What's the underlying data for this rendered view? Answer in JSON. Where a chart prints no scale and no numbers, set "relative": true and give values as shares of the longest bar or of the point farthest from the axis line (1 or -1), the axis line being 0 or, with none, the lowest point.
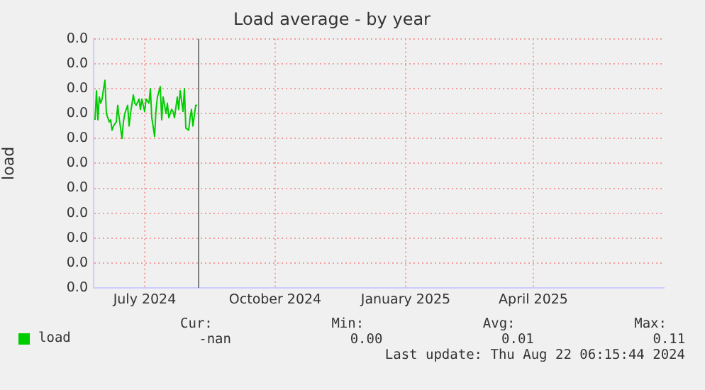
{
  "chart_data": {
    "type": "line",
    "title": "Load average - by year",
    "ylabel": "load",
    "relative": true,
    "x": [
      "2024-05-27",
      "2024-05-28",
      "2024-05-29",
      "2024-05-30",
      "2024-05-31",
      "2024-06-01",
      "2024-06-02",
      "2024-06-03",
      "2024-06-04",
      "2024-06-06",
      "2024-06-07",
      "2024-06-08",
      "2024-06-09",
      "2024-06-11",
      "2024-06-12",
      "2024-06-13",
      "2024-06-15",
      "2024-06-16",
      "2024-06-17",
      "2024-06-19",
      "2024-06-20",
      "2024-06-21",
      "2024-06-23",
      "2024-06-24",
      "2024-06-25",
      "2024-06-27",
      "2024-06-28",
      "2024-06-29",
      "2024-07-01",
      "2024-07-02",
      "2024-07-04",
      "2024-07-05",
      "2024-07-06",
      "2024-07-08",
      "2024-07-09",
      "2024-07-10",
      "2024-07-12",
      "2024-07-13",
      "2024-07-14",
      "2024-07-16",
      "2024-07-17",
      "2024-07-18",
      "2024-07-20",
      "2024-07-21",
      "2024-07-22",
      "2024-07-24",
      "2024-07-25",
      "2024-07-26",
      "2024-07-28",
      "2024-07-29",
      "2024-07-30",
      "2024-08-01",
      "2024-08-02",
      "2024-08-03",
      "2024-08-04",
      "2024-08-06",
      "2024-08-07"
    ],
    "series": [
      {
        "name": "load",
        "color": "#00cc00",
        "values": [
          0.81,
          0.95,
          0.81,
          0.92,
          0.89,
          0.91,
          0.96,
          1,
          0.84,
          0.8,
          0.81,
          0.76,
          0.78,
          0.8,
          0.88,
          0.82,
          0.72,
          0.8,
          0.84,
          0.88,
          0.78,
          0.84,
          0.93,
          0.89,
          0.88,
          0.91,
          0.86,
          0.91,
          0.85,
          0.91,
          0.89,
          0.96,
          0.82,
          0.73,
          0.86,
          0.92,
          0.97,
          0.81,
          0.92,
          0.84,
          0.89,
          0.82,
          0.86,
          0.85,
          0.82,
          0.92,
          0.86,
          0.95,
          0.85,
          0.96,
          0.77,
          0.76,
          0.82,
          0.86,
          0.78,
          0.88,
          0.88
        ]
      }
    ],
    "xlim": [
      "2024-05-26",
      "2025-07-02"
    ],
    "xticks": [
      {
        "value": "2024-07-01",
        "label": "July 2024"
      },
      {
        "value": "2024-10-01",
        "label": "October 2024"
      },
      {
        "value": "2025-01-01",
        "label": "January 2025"
      },
      {
        "value": "2025-04-01",
        "label": "April 2025"
      }
    ],
    "ref_lines": [
      {
        "axis": "x",
        "value": "2024-08-08",
        "label": null,
        "color": "#808080"
      }
    ],
    "grid": true,
    "legend": "bottom left",
    "marker": "none",
    "line_style": "solid",
    "annotations": [
      "0.0",
      "0.0",
      "0.0",
      "0.0",
      "0.0",
      "0.0",
      "0.0",
      "0.0",
      "0.0",
      "0.0",
      "0.0",
      "Cur:",
      "Min:",
      "Avg:",
      "Max:",
      "-nan",
      "0.00",
      "0.01",
      "0.11",
      "Last update: Thu Aug 22 06:15:44 2024"
    ]
  }
}
